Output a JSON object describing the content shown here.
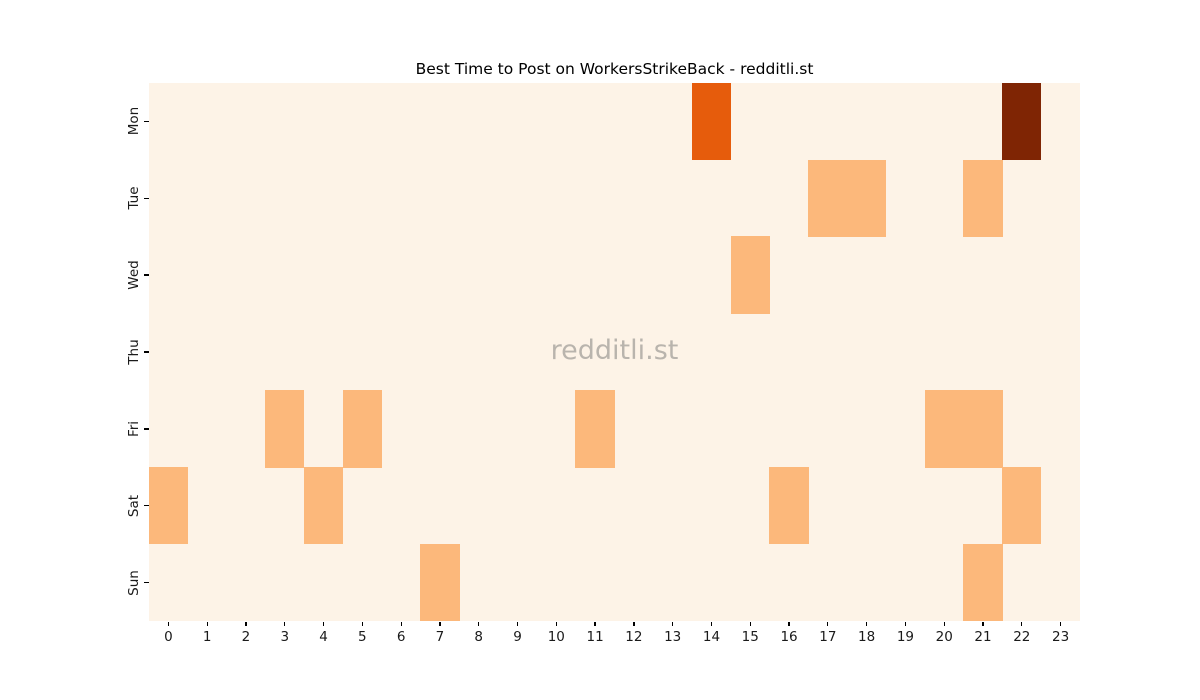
{
  "title": "Best Time to Post on WorkersStrikeBack - redditli.st",
  "watermark": "redditli.st",
  "colors": {
    "figure_background": "#ffffff",
    "plot_background": "#fdf3e7",
    "tick_mark": "#000000",
    "tick_label": "#1a1a1a",
    "title_text": "#000000",
    "watermark_text": "#b9b4ad"
  },
  "chart_data": {
    "type": "heatmap",
    "title": "Best Time to Post on WorkersStrikeBack - redditli.st",
    "xlabel": "",
    "ylabel": "",
    "x_labels": [
      "0",
      "1",
      "2",
      "3",
      "4",
      "5",
      "6",
      "7",
      "8",
      "9",
      "10",
      "11",
      "12",
      "13",
      "14",
      "15",
      "16",
      "17",
      "18",
      "19",
      "20",
      "21",
      "22",
      "23"
    ],
    "y_labels": [
      "Mon",
      "Tue",
      "Wed",
      "Thu",
      "Fri",
      "Sat",
      "Sun"
    ],
    "values": [
      [
        0,
        0,
        0,
        0,
        0,
        0,
        0,
        0,
        0,
        0,
        0,
        0,
        0,
        0,
        2,
        0,
        0,
        0,
        0,
        0,
        0,
        0,
        3,
        0
      ],
      [
        0,
        0,
        0,
        0,
        0,
        0,
        0,
        0,
        0,
        0,
        0,
        0,
        0,
        0,
        0,
        0,
        0,
        1,
        1,
        0,
        0,
        1,
        0,
        0
      ],
      [
        0,
        0,
        0,
        0,
        0,
        0,
        0,
        0,
        0,
        0,
        0,
        0,
        0,
        0,
        0,
        1,
        0,
        0,
        0,
        0,
        0,
        0,
        0,
        0
      ],
      [
        0,
        0,
        0,
        0,
        0,
        0,
        0,
        0,
        0,
        0,
        0,
        0,
        0,
        0,
        0,
        0,
        0,
        0,
        0,
        0,
        0,
        0,
        0,
        0
      ],
      [
        0,
        0,
        0,
        1,
        0,
        1,
        0,
        0,
        0,
        0,
        0,
        1,
        0,
        0,
        0,
        0,
        0,
        0,
        0,
        0,
        1,
        1,
        0,
        0
      ],
      [
        1,
        0,
        0,
        0,
        1,
        0,
        0,
        0,
        0,
        0,
        0,
        0,
        0,
        0,
        0,
        0,
        1,
        0,
        0,
        0,
        0,
        0,
        1,
        0
      ],
      [
        0,
        0,
        0,
        0,
        0,
        0,
        0,
        1,
        0,
        0,
        0,
        0,
        0,
        0,
        0,
        0,
        0,
        0,
        0,
        0,
        0,
        1,
        0,
        0
      ]
    ],
    "value_colors": {
      "0": "#fdf3e7",
      "1": "#fcb87b",
      "2": "#e65c0c",
      "3": "#7f2504"
    },
    "grid": false,
    "legend": false,
    "colormap": "Oranges",
    "value_range": [
      0,
      3
    ]
  }
}
